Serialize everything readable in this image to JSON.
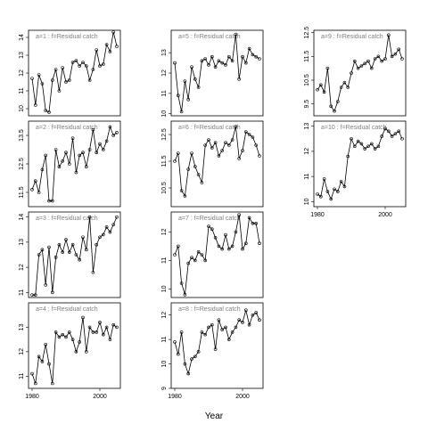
{
  "chart_data": {
    "type": "line",
    "xlabel": "Year",
    "panel_label_template": "a={a} :  f=Residual catch",
    "x_start": 1980,
    "x_tick_values": [
      1980,
      2000
    ],
    "x_tick_labels": [
      "1980",
      "2000"
    ],
    "panels": [
      {
        "a": 1,
        "label": "a=1 :  f=Residual catch",
        "ylim": [
          9.6,
          14.4
        ],
        "yticks": [
          10,
          11,
          12,
          13,
          14
        ],
        "y": [
          11.7,
          10.2,
          11.9,
          11.4,
          9.9,
          9.8,
          11.6,
          12.2,
          11.0,
          12.3,
          11.5,
          11.6,
          12.6,
          12.7,
          12.4,
          12.6,
          12.4,
          11.6,
          12.2,
          13.3,
          12.4,
          12.5,
          13.6,
          13.2,
          14.3,
          13.5
        ]
      },
      {
        "a": 2,
        "label": "a=2 :  f=Residual catch",
        "ylim": [
          11.0,
          14.0
        ],
        "yticks": [
          11.5,
          12.5,
          13.5
        ],
        "y": [
          11.6,
          11.9,
          11.5,
          12.3,
          12.8,
          11.2,
          11.2,
          13.0,
          12.4,
          12.6,
          12.9,
          12.5,
          13.4,
          12.2,
          12.8,
          12.9,
          12.4,
          13.0,
          13.7,
          12.9,
          13.2,
          13.0,
          13.3,
          13.8,
          13.5,
          13.6
        ]
      },
      {
        "a": 3,
        "label": "a=3 :  f=Residual catch",
        "ylim": [
          10.8,
          14.2
        ],
        "yticks": [
          11.0,
          12.0,
          13.0,
          14.0
        ],
        "y": [
          10.9,
          10.9,
          12.5,
          12.7,
          11.3,
          12.8,
          11.0,
          12.4,
          12.9,
          12.6,
          13.1,
          12.6,
          12.9,
          12.5,
          12.3,
          13.2,
          12.7,
          14.0,
          11.8,
          12.9,
          13.2,
          13.3,
          13.6,
          13.4,
          13.7,
          14.0
        ]
      },
      {
        "a": 4,
        "label": "a=4 :  f=Residual catch",
        "ylim": [
          10.5,
          14.0
        ],
        "yticks": [
          11.0,
          12.0,
          13.0
        ],
        "y": [
          11.1,
          10.7,
          11.8,
          11.6,
          12.3,
          11.5,
          10.7,
          12.8,
          12.6,
          12.7,
          12.6,
          12.8,
          12.5,
          12.0,
          12.4,
          13.4,
          12.0,
          13.0,
          12.8,
          12.8,
          13.2,
          12.7,
          13.0,
          12.5,
          13.1,
          13.0
        ]
      },
      {
        "a": 5,
        "label": "a=5 :  f=Residual catch",
        "ylim": [
          9.9,
          14.1
        ],
        "yticks": [
          10,
          11,
          12,
          13
        ],
        "y": [
          12.5,
          10.9,
          10.1,
          11.6,
          10.7,
          12.3,
          11.7,
          11.3,
          12.6,
          12.7,
          12.4,
          12.8,
          12.3,
          12.6,
          12.5,
          12.4,
          12.8,
          12.6,
          13.9,
          11.7,
          12.8,
          12.5,
          13.2,
          12.9,
          12.8,
          12.7
        ]
      },
      {
        "a": 6,
        "label": "a=6 :  f=Residual catch",
        "ylim": [
          9.8,
          13.0
        ],
        "yticks": [
          10.5,
          11.5,
          12.5
        ],
        "y": [
          11.5,
          11.8,
          10.4,
          10.2,
          11.2,
          11.8,
          11.3,
          11.0,
          10.7,
          12.1,
          12.3,
          12.0,
          12.2,
          11.7,
          11.9,
          12.2,
          12.1,
          12.3,
          12.8,
          11.6,
          11.9,
          12.6,
          12.5,
          12.4,
          12.1,
          11.7
        ]
      },
      {
        "a": 7,
        "label": "a=7 :  f=Residual catch",
        "ylim": [
          9.7,
          12.7
        ],
        "yticks": [
          10.0,
          11.0,
          12.0
        ],
        "y": [
          11.2,
          11.5,
          10.2,
          9.8,
          10.9,
          11.1,
          11.0,
          11.3,
          11.2,
          11.0,
          12.2,
          12.1,
          11.8,
          11.5,
          11.4,
          11.9,
          11.4,
          11.5,
          12.0,
          12.6,
          11.4,
          11.6,
          12.5,
          12.3,
          12.3,
          11.6
        ]
      },
      {
        "a": 8,
        "label": "a=8 :  f=Residual catch",
        "ylim": [
          9.0,
          12.5
        ],
        "yticks": [
          9.0,
          10.0,
          11.0,
          12.0
        ],
        "y": [
          10.9,
          10.4,
          11.3,
          10.0,
          9.6,
          10.2,
          10.3,
          10.5,
          11.3,
          11.2,
          11.5,
          11.6,
          10.6,
          11.8,
          11.4,
          11.5,
          11.0,
          11.3,
          11.5,
          11.8,
          11.7,
          12.2,
          11.6,
          12.0,
          12.1,
          11.8
        ]
      },
      {
        "a": 9,
        "label": "a=9 :  f=Residual catch",
        "ylim": [
          9.0,
          12.6
        ],
        "yticks": [
          9.5,
          10.5,
          11.5,
          12.5
        ],
        "y": [
          10.1,
          10.3,
          10.0,
          11.0,
          9.4,
          9.2,
          9.6,
          10.2,
          10.4,
          10.2,
          10.8,
          11.3,
          11.0,
          11.1,
          11.2,
          11.3,
          11.0,
          11.4,
          11.5,
          11.3,
          11.4,
          12.4,
          11.5,
          11.6,
          11.8,
          11.4
        ]
      },
      {
        "a": 10,
        "label": "a=10 :  f=Residual catch",
        "ylim": [
          9.8,
          13.2
        ],
        "yticks": [
          10.0,
          11.0,
          12.0,
          13.0
        ],
        "y": [
          10.3,
          10.2,
          10.9,
          10.4,
          10.1,
          10.5,
          10.4,
          10.8,
          10.6,
          11.8,
          12.5,
          12.2,
          12.4,
          12.3,
          12.1,
          12.2,
          12.3,
          12.1,
          12.2,
          12.6,
          12.9,
          12.8,
          12.6,
          12.7,
          12.8,
          12.5
        ]
      }
    ]
  }
}
